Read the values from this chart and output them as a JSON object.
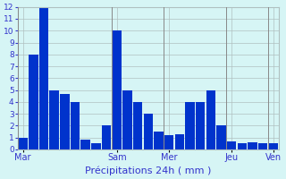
{
  "values": [
    1,
    8,
    12,
    5,
    4.7,
    4,
    0.8,
    0.5,
    2,
    10,
    5,
    4,
    3,
    1.5,
    1.2,
    1.3,
    4,
    4,
    5,
    2,
    0.7,
    0.5,
    0.6,
    0.5,
    0.5
  ],
  "day_labels": [
    "Mar",
    "Sam",
    "Mer",
    "Jeu",
    "Ven"
  ],
  "day_positions": [
    0,
    9,
    14,
    20,
    24
  ],
  "xlabel": "Précipitations 24h ( mm )",
  "ylim": [
    0,
    12
  ],
  "yticks": [
    0,
    1,
    2,
    3,
    4,
    5,
    6,
    7,
    8,
    9,
    10,
    11,
    12
  ],
  "bar_color": "#0033cc",
  "background_color": "#d6f5f5",
  "grid_color": "#b0c0c0",
  "xlabel_color": "#3333cc",
  "tick_color": "#3333cc",
  "vline_color": "#888888"
}
